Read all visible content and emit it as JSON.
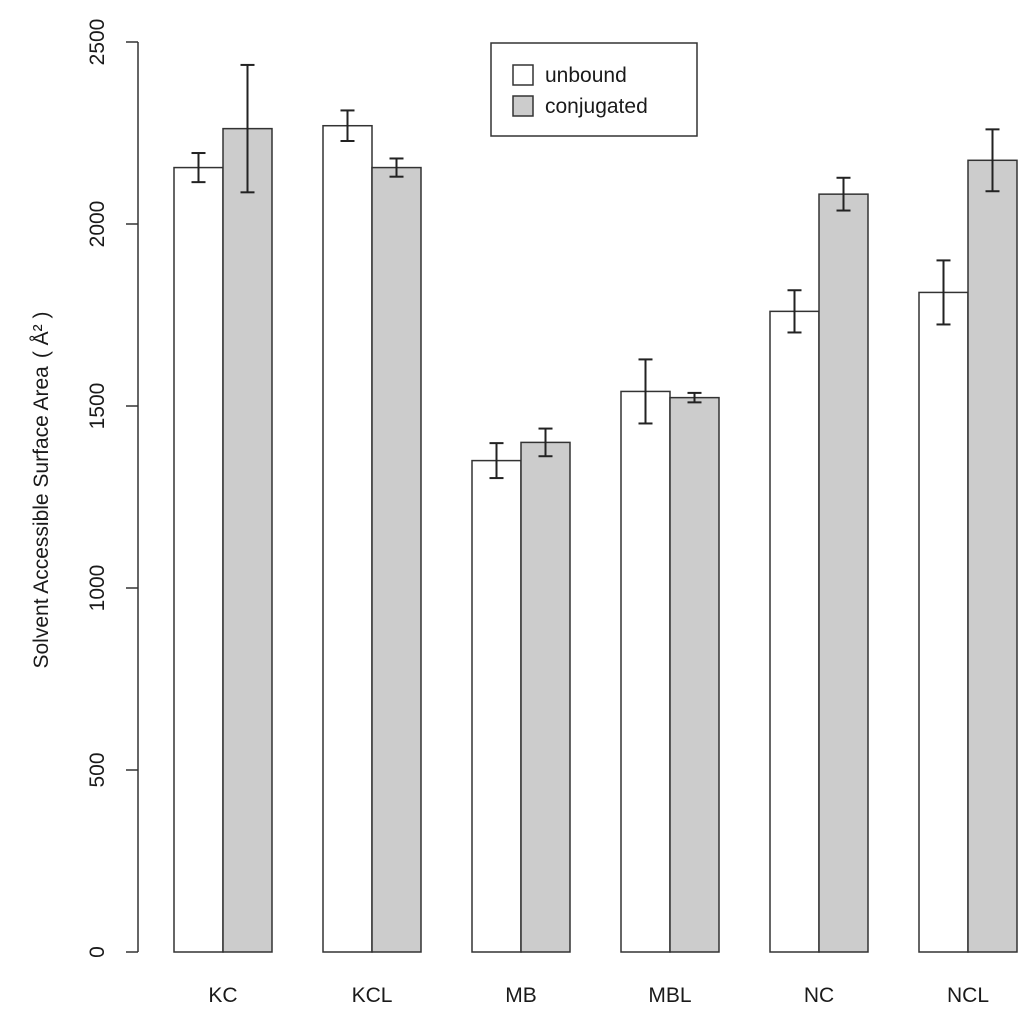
{
  "chart_data": {
    "type": "bar",
    "title": "",
    "xlabel": "",
    "ylabel": "Solvent Accessible Surface Area",
    "ylabel_unit": "( Å² )",
    "ylim": [
      0,
      2500
    ],
    "yticks": [
      0,
      500,
      1000,
      1500,
      2000,
      2500
    ],
    "grid": false,
    "legend_position": "top-center",
    "categories": [
      "KC",
      "KCL",
      "MB",
      "MBL",
      "NC",
      "NCL"
    ],
    "series": [
      {
        "name": "unbound",
        "color": "#ffffff",
        "values": [
          2155,
          2270,
          1350,
          1540,
          1760,
          1812
        ],
        "errors": [
          40,
          42,
          48,
          88,
          58,
          88
        ]
      },
      {
        "name": "conjugated",
        "color": "#cccccc",
        "values": [
          2262,
          2155,
          1400,
          1523,
          2082,
          2175
        ],
        "errors": [
          175,
          25,
          38,
          13,
          45,
          85
        ]
      }
    ]
  }
}
